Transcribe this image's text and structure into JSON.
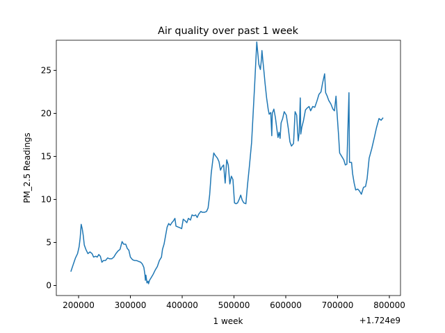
{
  "chart_data": {
    "type": "line",
    "title": "Air quality over past 1 week",
    "x_label": "1 week",
    "y_label": "PM_2.5 Readings",
    "x_offset_label": "+1.724e9",
    "x": [
      1724185000,
      1724190000,
      1724194000,
      1724198000,
      1724201000,
      1724203000,
      1724205000,
      1724207000,
      1724209000,
      1724211000,
      1724214000,
      1724218000,
      1724222000,
      1724226000,
      1724229000,
      1724233000,
      1724236000,
      1724239000,
      1724242000,
      1724245000,
      1724248000,
      1724252000,
      1724256000,
      1724260000,
      1724264000,
      1724268000,
      1724272000,
      1724276000,
      1724280000,
      1724284000,
      1724287000,
      1724291000,
      1724294000,
      1724297000,
      1724300000,
      1724304000,
      1724308000,
      1724312000,
      1724316000,
      1724320000,
      1724323000,
      1724326000,
      1724328000,
      1724329000,
      1724330000,
      1724332000,
      1724334000,
      1724335000,
      1724337000,
      1724340000,
      1724344000,
      1724348000,
      1724352000,
      1724356000,
      1724360000,
      1724362000,
      1724365000,
      1724368000,
      1724371000,
      1724374000,
      1724377000,
      1724380000,
      1724383000,
      1724386000,
      1724388000,
      1724392000,
      1724396000,
      1724399000,
      1724402000,
      1724406000,
      1724409000,
      1724412000,
      1724416000,
      1724419000,
      1724423000,
      1724426000,
      1724429000,
      1724432000,
      1724436000,
      1724439000,
      1724443000,
      1724447000,
      1724450000,
      1724453000,
      1724456000,
      1724459000,
      1724461000,
      1724464000,
      1724468000,
      1724471000,
      1724474000,
      1724477000,
      1724480000,
      1724483000,
      1724486000,
      1724489000,
      1724492000,
      1724495000,
      1724498000,
      1724501000,
      1724504000,
      1724507000,
      1724510000,
      1724513000,
      1724516000,
      1724519000,
      1724523000,
      1724526000,
      1724530000,
      1724534000,
      1724537000,
      1724540000,
      1724544000,
      1724546000,
      1724548000,
      1724551000,
      1724553000,
      1724554000,
      1724556000,
      1724558000,
      1724560000,
      1724563000,
      1724566000,
      1724568000,
      1724571000,
      1724573000,
      1724574000,
      1724577000,
      1724580000,
      1724583000,
      1724585000,
      1724587000,
      1724589000,
      1724591000,
      1724594000,
      1724597000,
      1724601000,
      1724605000,
      1724608000,
      1724611000,
      1724615000,
      1724618000,
      1724621000,
      1724624000,
      1724626000,
      1724628000,
      1724629000,
      1724631000,
      1724634000,
      1724638000,
      1724641000,
      1724645000,
      1724648000,
      1724652000,
      1724656000,
      1724660000,
      1724664000,
      1724668000,
      1724671000,
      1724675000,
      1724677000,
      1724680000,
      1724683000,
      1724687000,
      1724691000,
      1724694000,
      1724697000,
      1724699000,
      1724702000,
      1724704000,
      1724708000,
      1724712000,
      1724715000,
      1724718000,
      1724722000,
      1724723000,
      1724725000,
      1724727000,
      1724729000,
      1724732000,
      1724735000,
      1724739000,
      1724742000,
      1724746000,
      1724750000,
      1724754000,
      1724757000,
      1724761000,
      1724766000,
      1724771000,
      1724775000,
      1724780000,
      1724784000,
      1724788000
    ],
    "series": [
      {
        "color": "#1f77b4",
        "values": [
          1.6,
          2.5,
          3.2,
          3.7,
          4.5,
          5.5,
          7.1,
          6.6,
          5.8,
          4.7,
          4.2,
          3.7,
          3.9,
          3.7,
          3.3,
          3.4,
          3.3,
          3.6,
          3.4,
          2.7,
          2.9,
          2.9,
          3.2,
          3.1,
          3.1,
          3.3,
          3.7,
          4.0,
          4.2,
          5.1,
          4.8,
          4.8,
          4.3,
          4.1,
          3.3,
          3.0,
          2.9,
          2.9,
          2.8,
          2.7,
          2.5,
          2.1,
          1.3,
          0.6,
          1.2,
          0.3,
          0.5,
          0.2,
          0.6,
          0.9,
          1.3,
          1.8,
          2.2,
          2.9,
          3.3,
          4.2,
          4.8,
          5.8,
          6.8,
          7.2,
          7.0,
          7.3,
          7.5,
          7.8,
          6.9,
          6.8,
          6.7,
          6.6,
          7.7,
          7.5,
          7.3,
          7.8,
          7.6,
          8.2,
          8.1,
          8.2,
          7.9,
          8.3,
          8.6,
          8.5,
          8.5,
          8.6,
          9.0,
          10.5,
          13.0,
          14.5,
          15.4,
          15.1,
          14.8,
          14.4,
          13.4,
          13.8,
          14.0,
          11.9,
          14.6,
          14.0,
          11.8,
          12.7,
          12.3,
          9.6,
          9.5,
          9.6,
          10.0,
          10.5,
          9.9,
          9.6,
          9.5,
          11.6,
          14.0,
          16.6,
          20.0,
          23.4,
          28.3,
          27.0,
          25.7,
          25.1,
          26.3,
          27.3,
          26.0,
          24.8,
          23.5,
          21.8,
          20.5,
          19.9,
          20.1,
          17.4,
          20.0,
          20.5,
          19.5,
          18.1,
          17.2,
          17.8,
          17.1,
          18.9,
          19.4,
          20.2,
          19.8,
          18.2,
          16.7,
          16.2,
          16.5,
          20.2,
          19.8,
          16.8,
          17.8,
          21.8,
          17.6,
          18.4,
          19.1,
          20.4,
          20.6,
          20.8,
          20.3,
          20.8,
          20.7,
          21.4,
          22.2,
          22.5,
          23.5,
          24.6,
          22.4,
          22.0,
          21.5,
          21.1,
          20.5,
          20.3,
          22.0,
          20.0,
          17.4,
          15.4,
          15.0,
          14.6,
          14.0,
          14.1,
          22.4,
          14.3,
          14.3,
          14.3,
          13.0,
          11.9,
          11.1,
          11.2,
          11.0,
          10.6,
          11.4,
          11.5,
          12.4,
          14.8,
          15.9,
          17.2,
          18.3,
          19.4,
          19.2,
          19.5
        ]
      }
    ],
    "xlim": [
      1724157000,
      1724821500
    ],
    "ylim": [
      -1.17,
      28.5
    ],
    "xticks": [
      {
        "value": 1724200000,
        "label": "200000"
      },
      {
        "value": 1724300000,
        "label": "300000"
      },
      {
        "value": 1724400000,
        "label": "400000"
      },
      {
        "value": 1724500000,
        "label": "500000"
      },
      {
        "value": 1724600000,
        "label": "600000"
      },
      {
        "value": 1724700000,
        "label": "700000"
      },
      {
        "value": 1724800000,
        "label": "800000"
      }
    ],
    "yticks": [
      0,
      5,
      10,
      15,
      20,
      25
    ]
  }
}
